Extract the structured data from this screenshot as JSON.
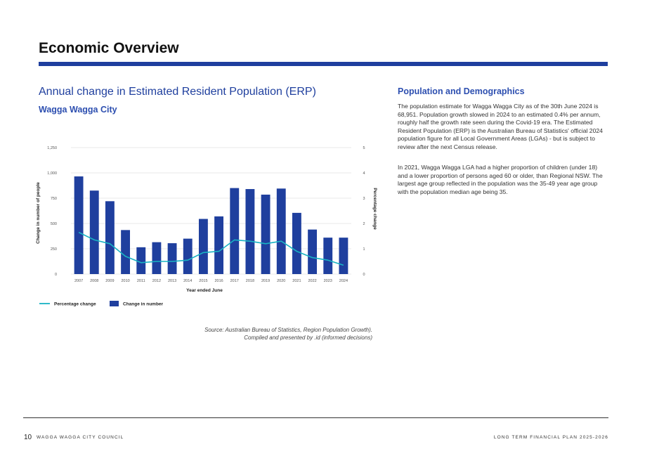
{
  "page": {
    "title": "Economic Overview",
    "page_number": "10",
    "organisation": "WAGGA WAGGA CITY COUNCIL",
    "document": "LONG TERM FINANCIAL PLAN 2025-2026"
  },
  "chart_section": {
    "title": "Annual change in Estimated Resident Population (ERP)",
    "subtitle": "Wagga Wagga City",
    "source_line1": "Source: Australian Bureau of Statistics, Region Population Growth).",
    "source_line2": "Compiled and presented by .id (informed decisions)"
  },
  "side_panel": {
    "heading": "Population and Demographics",
    "paragraph1": "The population estimate for Wagga Wagga City as of the 30th June 2024 is 68,951. Population growth slowed in 2024 to an estimated 0.4% per annum, roughly half the growth rate seen during the Covid-19 era.  The Estimated Resident Population (ERP) is the Australian Bureau of Statistics' official 2024 population figure for all Local Government Areas (LGAs) - but is subject to review after the next Census release.",
    "paragraph2": "In 2021, Wagga Wagga LGA had a higher proportion of children (under 18) and a lower proportion of persons aged 60 or older, than Regional NSW. The largest age group reflected in the population was the 35-49 year age group with the population median age being 35."
  },
  "colors": {
    "accent": "#1f3f9e",
    "bar": "#1f3f9e",
    "line": "#19b3c3",
    "grid": "#e3e3e3"
  },
  "chart_data": {
    "type": "bar",
    "categories": [
      "2007",
      "2008",
      "2009",
      "2010",
      "2011",
      "2012",
      "2013",
      "2014",
      "2015",
      "2016",
      "2017",
      "2018",
      "2019",
      "2020",
      "2021",
      "2022",
      "2023",
      "2024"
    ],
    "series": [
      {
        "name": "Change in number",
        "axis": "left",
        "type": "bar",
        "values": [
          965,
          825,
          720,
          435,
          265,
          315,
          305,
          350,
          545,
          570,
          850,
          840,
          785,
          845,
          605,
          440,
          360,
          360
        ]
      },
      {
        "name": "Percentage change",
        "axis": "right",
        "type": "line",
        "values": [
          1.65,
          1.35,
          1.2,
          0.7,
          0.45,
          0.5,
          0.5,
          0.55,
          0.85,
          0.9,
          1.35,
          1.3,
          1.2,
          1.3,
          0.9,
          0.65,
          0.55,
          0.35
        ]
      }
    ],
    "xlabel": "Year ended June",
    "ylabel": "Change in number of people",
    "y2label": "Percentage change",
    "yticks": [
      "0",
      "250",
      "500",
      "750",
      "1,000",
      "1,250"
    ],
    "y2ticks": [
      "0",
      "1",
      "2",
      "3",
      "4",
      "5"
    ],
    "ylim": [
      0,
      1250
    ],
    "y2lim": [
      0,
      5
    ],
    "grid": true,
    "legend": {
      "placement": "bottom-left",
      "line_label": "Percentage change",
      "bar_label": "Change in number"
    }
  }
}
